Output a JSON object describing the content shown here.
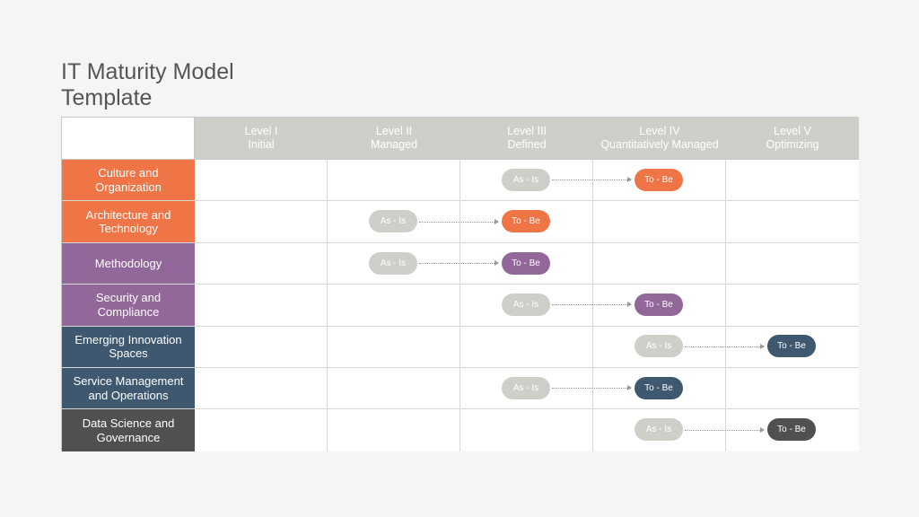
{
  "title": "IT Maturity Model\nTemplate",
  "levels": [
    {
      "name": "Level I",
      "sub": "Initial"
    },
    {
      "name": "Level II",
      "sub": "Managed"
    },
    {
      "name": "Level III",
      "sub": "Defined"
    },
    {
      "name": "Level IV",
      "sub": "Quantitatively Managed"
    },
    {
      "name": "Level V",
      "sub": "Optimizing"
    }
  ],
  "rows": [
    {
      "label": "Culture and Organization",
      "color": "#ef7547",
      "as_is": 3,
      "to_be": 4
    },
    {
      "label": "Architecture and Technology",
      "color": "#ef7547",
      "as_is": 2,
      "to_be": 3
    },
    {
      "label": "Methodology",
      "color": "#92679a",
      "as_is": 2,
      "to_be": 3
    },
    {
      "label": "Security and Compliance",
      "color": "#92679a",
      "as_is": 3,
      "to_be": 4
    },
    {
      "label": "Emerging Innovation Spaces",
      "color": "#3d586f",
      "as_is": 4,
      "to_be": 5
    },
    {
      "label": "Service Management and Operations",
      "color": "#3d586f",
      "as_is": 3,
      "to_be": 4
    },
    {
      "label": "Data Science and Governance",
      "color": "#505050",
      "as_is": 4,
      "to_be": 5
    }
  ],
  "pills": {
    "as_is_label": "As - Is",
    "to_be_label": "To - Be"
  }
}
